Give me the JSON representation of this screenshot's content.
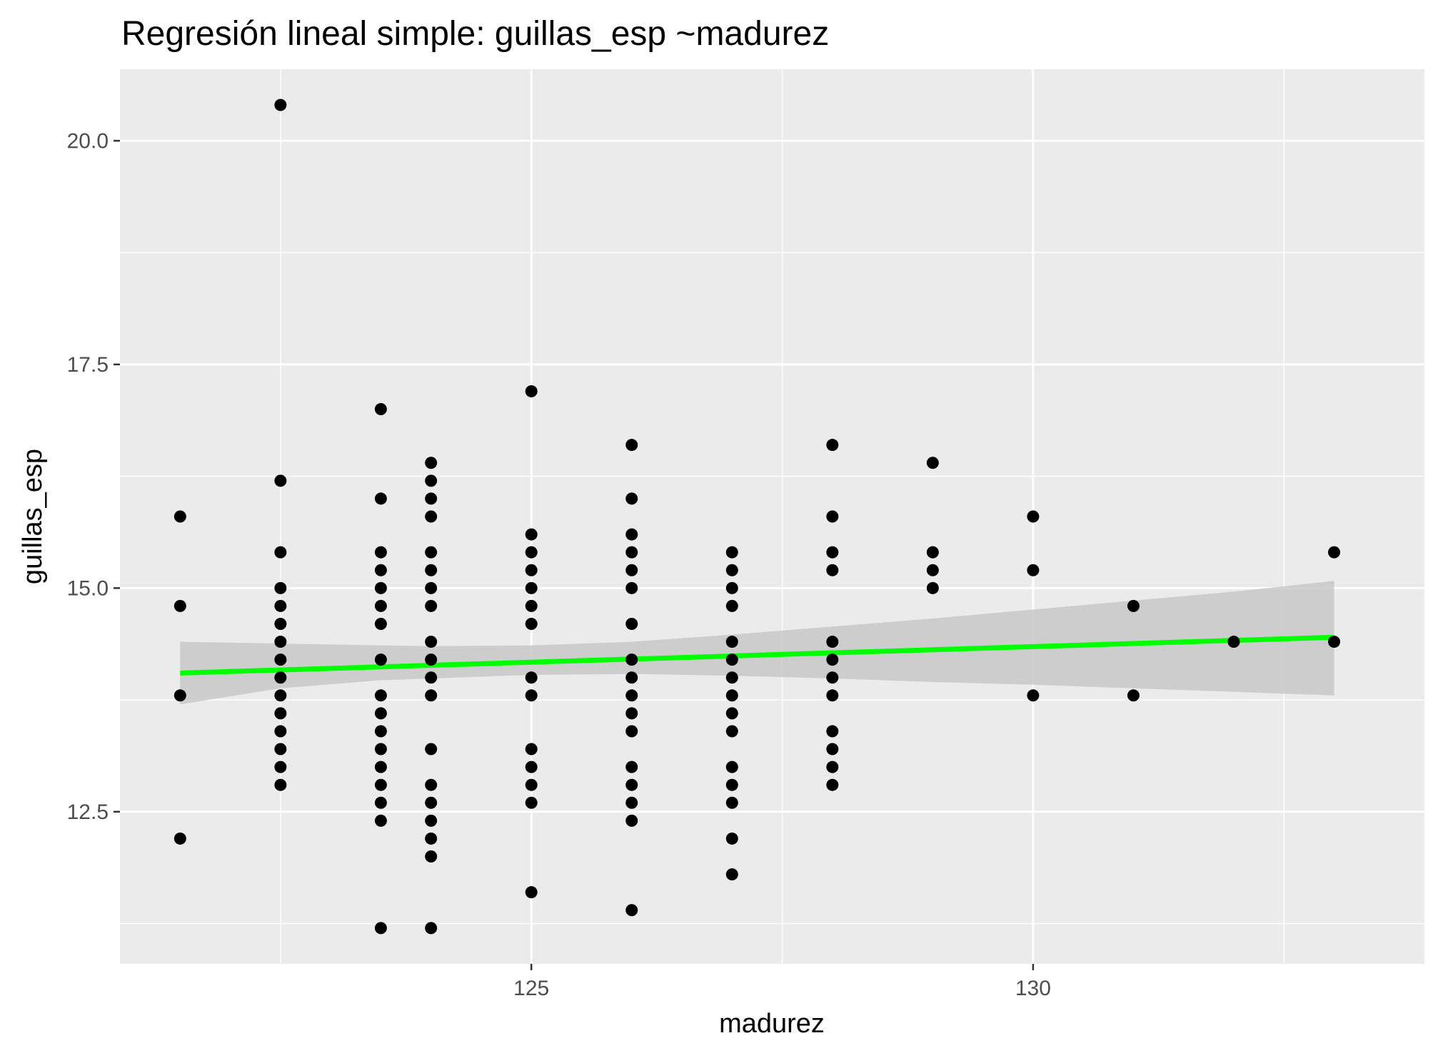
{
  "chart_data": {
    "type": "scatter",
    "title": "Regresión lineal simple:  guillas_esp ~madurez",
    "xlabel": "madurez",
    "ylabel": "guillas_esp",
    "xlim": [
      120.9,
      133.9
    ],
    "ylim": [
      10.8,
      20.8
    ],
    "x_ticks": [
      125,
      130
    ],
    "x_tick_labels": [
      "125",
      "130"
    ],
    "x_minor_ticks": [
      122.5,
      127.5,
      132.5
    ],
    "y_ticks": [
      12.5,
      15.0,
      17.5,
      20.0
    ],
    "y_tick_labels": [
      "12.5",
      "15.0",
      "17.5",
      "20.0"
    ],
    "y_minor_ticks": [
      11.25,
      13.75,
      16.25,
      18.75
    ],
    "grid": true,
    "legend": "none",
    "colors": {
      "panel": "#ebebeb",
      "grid": "#ffffff",
      "points": "#000000",
      "fit_line": "#00ff00",
      "ribbon": "#c8c8c8"
    },
    "series": [
      {
        "type": "scatter",
        "points": [
          [
            121.5,
            15.8
          ],
          [
            121.5,
            14.8
          ],
          [
            121.5,
            13.8
          ],
          [
            121.5,
            12.2
          ],
          [
            122.5,
            20.4
          ],
          [
            122.5,
            16.2
          ],
          [
            122.5,
            15.4
          ],
          [
            122.5,
            15.0
          ],
          [
            122.5,
            14.8
          ],
          [
            122.5,
            14.6
          ],
          [
            122.5,
            14.4
          ],
          [
            122.5,
            14.2
          ],
          [
            122.5,
            14.0
          ],
          [
            122.5,
            13.8
          ],
          [
            122.5,
            13.6
          ],
          [
            122.5,
            13.4
          ],
          [
            122.5,
            13.2
          ],
          [
            122.5,
            13.0
          ],
          [
            122.5,
            12.8
          ],
          [
            123.5,
            17.0
          ],
          [
            123.5,
            16.0
          ],
          [
            123.5,
            15.4
          ],
          [
            123.5,
            15.2
          ],
          [
            123.5,
            15.0
          ],
          [
            123.5,
            14.8
          ],
          [
            123.5,
            14.6
          ],
          [
            123.5,
            14.2
          ],
          [
            123.5,
            13.8
          ],
          [
            123.5,
            13.6
          ],
          [
            123.5,
            13.4
          ],
          [
            123.5,
            13.2
          ],
          [
            123.5,
            13.0
          ],
          [
            123.5,
            12.8
          ],
          [
            123.5,
            12.6
          ],
          [
            123.5,
            12.4
          ],
          [
            123.5,
            11.2
          ],
          [
            124.0,
            16.4
          ],
          [
            124.0,
            16.2
          ],
          [
            124.0,
            16.0
          ],
          [
            124.0,
            15.8
          ],
          [
            124.0,
            15.4
          ],
          [
            124.0,
            15.2
          ],
          [
            124.0,
            15.0
          ],
          [
            124.0,
            14.8
          ],
          [
            124.0,
            14.4
          ],
          [
            124.0,
            14.2
          ],
          [
            124.0,
            14.0
          ],
          [
            124.0,
            13.8
          ],
          [
            124.0,
            13.2
          ],
          [
            124.0,
            12.8
          ],
          [
            124.0,
            12.6
          ],
          [
            124.0,
            12.4
          ],
          [
            124.0,
            12.2
          ],
          [
            124.0,
            12.0
          ],
          [
            124.0,
            11.2
          ],
          [
            125.0,
            17.2
          ],
          [
            125.0,
            15.6
          ],
          [
            125.0,
            15.4
          ],
          [
            125.0,
            15.2
          ],
          [
            125.0,
            15.0
          ],
          [
            125.0,
            14.8
          ],
          [
            125.0,
            14.6
          ],
          [
            125.0,
            14.0
          ],
          [
            125.0,
            13.8
          ],
          [
            125.0,
            13.2
          ],
          [
            125.0,
            13.0
          ],
          [
            125.0,
            12.8
          ],
          [
            125.0,
            12.6
          ],
          [
            125.0,
            11.6
          ],
          [
            126.0,
            16.6
          ],
          [
            126.0,
            16.0
          ],
          [
            126.0,
            15.6
          ],
          [
            126.0,
            15.4
          ],
          [
            126.0,
            15.2
          ],
          [
            126.0,
            15.0
          ],
          [
            126.0,
            14.6
          ],
          [
            126.0,
            14.2
          ],
          [
            126.0,
            14.0
          ],
          [
            126.0,
            13.8
          ],
          [
            126.0,
            13.6
          ],
          [
            126.0,
            13.4
          ],
          [
            126.0,
            13.0
          ],
          [
            126.0,
            12.8
          ],
          [
            126.0,
            12.6
          ],
          [
            126.0,
            12.4
          ],
          [
            126.0,
            11.4
          ],
          [
            127.0,
            15.4
          ],
          [
            127.0,
            15.2
          ],
          [
            127.0,
            15.0
          ],
          [
            127.0,
            14.8
          ],
          [
            127.0,
            14.4
          ],
          [
            127.0,
            14.2
          ],
          [
            127.0,
            14.0
          ],
          [
            127.0,
            13.8
          ],
          [
            127.0,
            13.6
          ],
          [
            127.0,
            13.4
          ],
          [
            127.0,
            13.0
          ],
          [
            127.0,
            12.8
          ],
          [
            127.0,
            12.6
          ],
          [
            127.0,
            12.2
          ],
          [
            127.0,
            11.8
          ],
          [
            128.0,
            16.6
          ],
          [
            128.0,
            15.8
          ],
          [
            128.0,
            15.4
          ],
          [
            128.0,
            15.2
          ],
          [
            128.0,
            14.4
          ],
          [
            128.0,
            14.2
          ],
          [
            128.0,
            14.0
          ],
          [
            128.0,
            13.8
          ],
          [
            128.0,
            13.4
          ],
          [
            128.0,
            13.2
          ],
          [
            128.0,
            13.0
          ],
          [
            128.0,
            12.8
          ],
          [
            129.0,
            16.4
          ],
          [
            129.0,
            15.4
          ],
          [
            129.0,
            15.2
          ],
          [
            129.0,
            15.0
          ],
          [
            130.0,
            15.8
          ],
          [
            130.0,
            15.2
          ],
          [
            130.0,
            13.8
          ],
          [
            131.0,
            14.8
          ],
          [
            131.0,
            13.8
          ],
          [
            132.0,
            14.4
          ],
          [
            133.0,
            15.4
          ],
          [
            133.0,
            14.4
          ]
        ]
      },
      {
        "type": "line",
        "method": "lm",
        "x": [
          121.5,
          133.0
        ],
        "y": [
          14.05,
          14.45
        ]
      },
      {
        "type": "area",
        "role": "confidence-band",
        "x": [
          121.5,
          122.5,
          123.5,
          124.0,
          125.0,
          126.0,
          127.0,
          128.0,
          129.0,
          130.0,
          131.0,
          132.0,
          133.0
        ],
        "lower": [
          13.7,
          13.88,
          13.97,
          13.99,
          14.03,
          14.04,
          14.02,
          13.99,
          13.95,
          13.92,
          13.88,
          13.84,
          13.8
        ],
        "upper": [
          14.4,
          14.38,
          14.36,
          14.35,
          14.36,
          14.4,
          14.48,
          14.57,
          14.66,
          14.76,
          14.86,
          14.96,
          15.08
        ]
      }
    ]
  }
}
